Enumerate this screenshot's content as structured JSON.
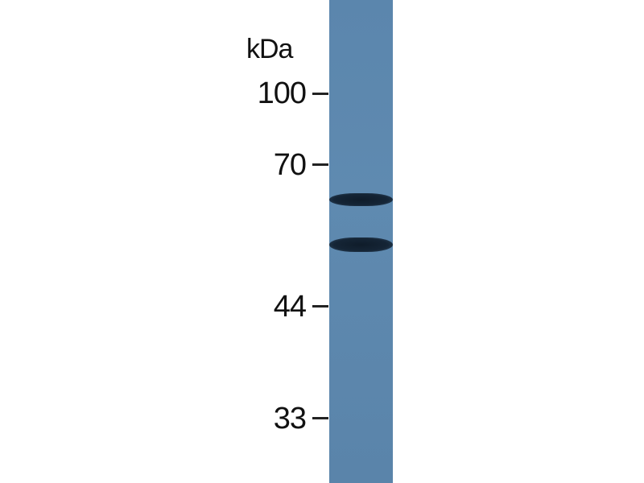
{
  "blot": {
    "unit_label": "kDa",
    "lane_color": "#5b86ad",
    "band_color": "#132232",
    "markers": [
      {
        "label": "100"
      },
      {
        "label": "70"
      },
      {
        "label": "44"
      },
      {
        "label": "33"
      }
    ],
    "bands_count_visible": 2
  }
}
